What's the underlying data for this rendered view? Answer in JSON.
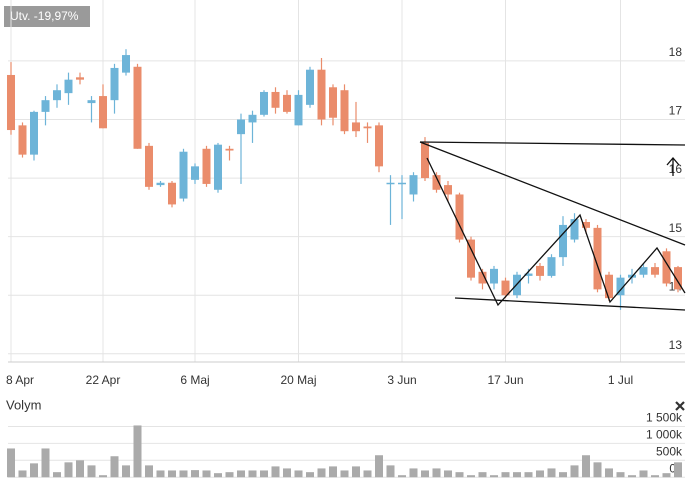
{
  "chart_data": [
    {
      "type": "candlestick",
      "annotation": "Utv. -19,97%",
      "categories": [
        "8 Apr",
        null,
        null,
        null,
        null,
        null,
        null,
        null,
        "22 Apr",
        null,
        null,
        null,
        null,
        null,
        null,
        null,
        "6 Maj",
        null,
        null,
        null,
        null,
        null,
        null,
        null,
        null,
        "20 Maj",
        null,
        null,
        null,
        null,
        null,
        null,
        null,
        null,
        "3 Jun",
        null,
        null,
        null,
        null,
        null,
        null,
        null,
        null,
        "17 Jun",
        null,
        null,
        null,
        null,
        null,
        null,
        null,
        null,
        null,
        "1 Jul",
        null,
        null,
        null,
        null,
        null
      ],
      "open": [
        17.76,
        16.9,
        16.4,
        17.13,
        17.33,
        17.45,
        17.72,
        17.28,
        17.4,
        17.33,
        17.8,
        17.9,
        16.55,
        15.88,
        15.92,
        15.65,
        15.97,
        16.5,
        15.8,
        16.5,
        16.75,
        16.95,
        17.08,
        17.47,
        17.42,
        16.9,
        17.25,
        17.85,
        17.55,
        17.5,
        16.95,
        16.88,
        16.9,
        15.9,
        15.9,
        15.72,
        16.6,
        16.05,
        15.88,
        15.72,
        14.95,
        14.4,
        14.2,
        14.25,
        14.0,
        14.33,
        14.5,
        14.33,
        14.65,
        14.95,
        15.25,
        15.15,
        14.35,
        14.0,
        14.3,
        14.35,
        14.48,
        14.75,
        14.48
      ],
      "high": [
        17.98,
        16.95,
        17.15,
        17.4,
        17.6,
        17.8,
        17.8,
        17.4,
        17.6,
        17.95,
        18.2,
        17.95,
        16.6,
        15.95,
        15.95,
        16.5,
        16.25,
        16.55,
        16.6,
        16.55,
        17.1,
        17.15,
        17.5,
        17.55,
        17.5,
        17.5,
        17.9,
        18.05,
        17.6,
        17.6,
        17.3,
        16.95,
        16.95,
        16.05,
        16.05,
        16.1,
        16.7,
        16.1,
        15.95,
        15.75,
        15.0,
        14.45,
        14.5,
        14.3,
        14.4,
        14.45,
        14.55,
        14.7,
        15.35,
        15.4,
        15.3,
        15.2,
        14.4,
        14.35,
        14.45,
        14.55,
        14.55,
        14.8,
        14.5
      ],
      "low": [
        16.74,
        16.35,
        16.3,
        16.9,
        17.2,
        17.25,
        17.6,
        16.95,
        16.85,
        17.1,
        17.75,
        16.5,
        15.8,
        15.85,
        15.5,
        15.6,
        15.9,
        15.85,
        15.75,
        16.3,
        15.9,
        16.6,
        17.05,
        17.1,
        17.1,
        16.9,
        17.2,
        16.9,
        16.9,
        16.75,
        16.7,
        16.6,
        16.1,
        15.2,
        15.3,
        15.6,
        15.95,
        15.75,
        15.6,
        14.9,
        14.25,
        14.1,
        14.1,
        13.95,
        13.95,
        14.2,
        14.25,
        14.3,
        14.5,
        14.9,
        15.05,
        14.05,
        13.9,
        13.75,
        14.2,
        14.3,
        14.3,
        14.15,
        14.05
      ],
      "close": [
        16.82,
        16.4,
        17.13,
        17.33,
        17.5,
        17.68,
        17.68,
        17.33,
        16.85,
        17.88,
        18.1,
        16.5,
        15.85,
        15.92,
        15.55,
        16.45,
        16.2,
        15.9,
        16.57,
        16.47,
        17.0,
        17.08,
        17.47,
        17.2,
        17.13,
        17.42,
        17.85,
        17.0,
        17.03,
        16.8,
        16.8,
        16.85,
        16.2,
        15.92,
        15.92,
        16.05,
        16.0,
        15.8,
        15.72,
        14.95,
        14.3,
        14.2,
        14.45,
        14.0,
        14.35,
        14.37,
        14.33,
        14.65,
        15.2,
        15.3,
        15.15,
        14.1,
        13.95,
        14.3,
        14.35,
        14.48,
        14.35,
        14.2,
        14.1
      ],
      "up_color": "#6db4d8",
      "down_color": "#ea8c6b",
      "ylim": [
        12.86,
        19.04
      ],
      "yticks": [
        13,
        14,
        15,
        16,
        17,
        18
      ],
      "grid": true
    },
    {
      "type": "bar",
      "title": "Volym",
      "values": [
        850000,
        200000,
        410000,
        850000,
        150000,
        440000,
        500000,
        350000,
        60000,
        620000,
        350000,
        1530000,
        350000,
        200000,
        200000,
        200000,
        210000,
        200000,
        120000,
        150000,
        200000,
        200000,
        200000,
        320000,
        260000,
        200000,
        150000,
        260000,
        320000,
        200000,
        320000,
        200000,
        650000,
        350000,
        60000,
        260000,
        200000,
        260000,
        200000,
        150000,
        60000,
        150000,
        60000,
        150000,
        150000,
        150000,
        200000,
        260000,
        150000,
        350000,
        650000,
        440000,
        260000,
        150000,
        60000,
        200000,
        60000,
        120000,
        440000
      ],
      "color": "#aaaaaa",
      "ylim": [
        -200000,
        1750000
      ],
      "yticks": [
        {
          "value": 0,
          "label": "0k"
        },
        {
          "value": 500000,
          "label": "500k"
        },
        {
          "value": 1000000,
          "label": "1 000k"
        },
        {
          "value": 1500000,
          "label": "1 500k"
        }
      ],
      "grid": true
    }
  ]
}
